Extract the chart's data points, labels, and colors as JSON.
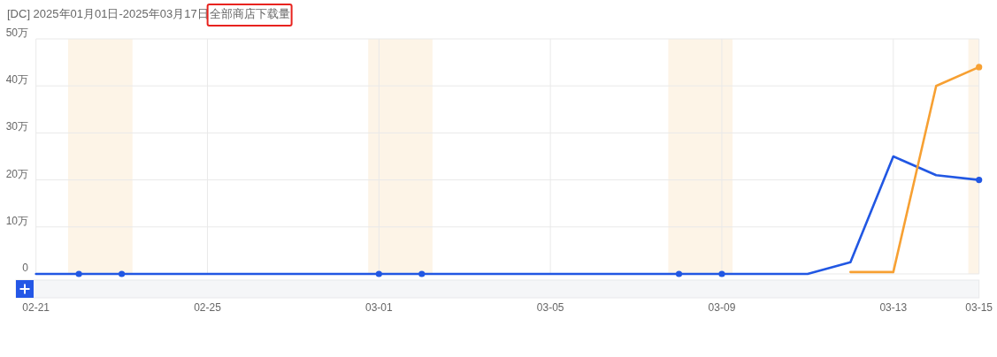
{
  "chart_data": {
    "type": "line",
    "title": "[DC] 2025年01月01日-2025年03月17日",
    "subtitle": "全部商店下载量",
    "x": [
      "2025-02-21",
      "2025-02-22",
      "2025-02-23",
      "2025-02-24",
      "2025-02-25",
      "2025-02-26",
      "2025-02-27",
      "2025-02-28",
      "2025-03-01",
      "2025-03-02",
      "2025-03-03",
      "2025-03-04",
      "2025-03-05",
      "2025-03-06",
      "2025-03-07",
      "2025-03-08",
      "2025-03-09",
      "2025-03-10",
      "2025-03-11",
      "2025-03-12",
      "2025-03-13",
      "2025-03-14",
      "2025-03-15"
    ],
    "series": [
      {
        "color": "#2157e3",
        "values": [
          0,
          0,
          0,
          0,
          0,
          0,
          0,
          0,
          0,
          0,
          0,
          0,
          0,
          0,
          0,
          0,
          0,
          0,
          0,
          2.5,
          25,
          21,
          20
        ]
      },
      {
        "color": "#f7a032",
        "x": [
          "2025-03-12",
          "2025-03-13",
          "2025-03-14",
          "2025-03-15"
        ],
        "values": [
          0.4,
          0.4,
          40,
          44
        ]
      },
      {
        "type": "scatter",
        "color": "#2157e3",
        "marker": "circle",
        "x": [
          "2025-02-22",
          "2025-02-23",
          "2025-03-01",
          "2025-03-02",
          "2025-03-08",
          "2025-03-09",
          "2025-03-15"
        ],
        "values": [
          0,
          0,
          0,
          0,
          0,
          0,
          20
        ]
      },
      {
        "type": "scatter",
        "color": "#f7a032",
        "marker": "circle",
        "x": [
          "2025-03-15"
        ],
        "values": [
          44
        ]
      }
    ],
    "xlim": [
      "2025-02-21",
      "2025-03-15"
    ],
    "xticks": [
      {
        "value": "2025-02-21",
        "label": "02-21"
      },
      {
        "value": "2025-02-25",
        "label": "02-25"
      },
      {
        "value": "2025-03-01",
        "label": "03-01"
      },
      {
        "value": "2025-03-05",
        "label": "03-05"
      },
      {
        "value": "2025-03-09",
        "label": "03-09"
      },
      {
        "value": "2025-03-13",
        "label": "03-13"
      },
      {
        "value": "2025-03-15",
        "label": "03-15"
      }
    ],
    "ylim": [
      0,
      50
    ],
    "yticks": [
      0,
      {
        "value": 10,
        "label": "10万"
      },
      {
        "value": 20,
        "label": "20万"
      },
      {
        "value": 30,
        "label": "30万"
      },
      {
        "value": 40,
        "label": "40万"
      },
      {
        "value": 50,
        "label": "50万"
      }
    ],
    "bands": [
      {
        "axis": "x",
        "from": "2025-02-21T18:00",
        "to": "2025-02-23T06:00",
        "color": "#fdf4e7"
      },
      {
        "axis": "x",
        "from": "2025-02-28T18:00",
        "to": "2025-03-02T06:00",
        "color": "#fdf4e7"
      },
      {
        "axis": "x",
        "from": "2025-03-07T18:00",
        "to": "2025-03-09T06:00",
        "color": "#fdf4e7"
      },
      {
        "axis": "x",
        "from": "2025-03-14T18:00",
        "to": "2025-03-15",
        "color": "#fdf4e7"
      }
    ],
    "grid": true
  }
}
